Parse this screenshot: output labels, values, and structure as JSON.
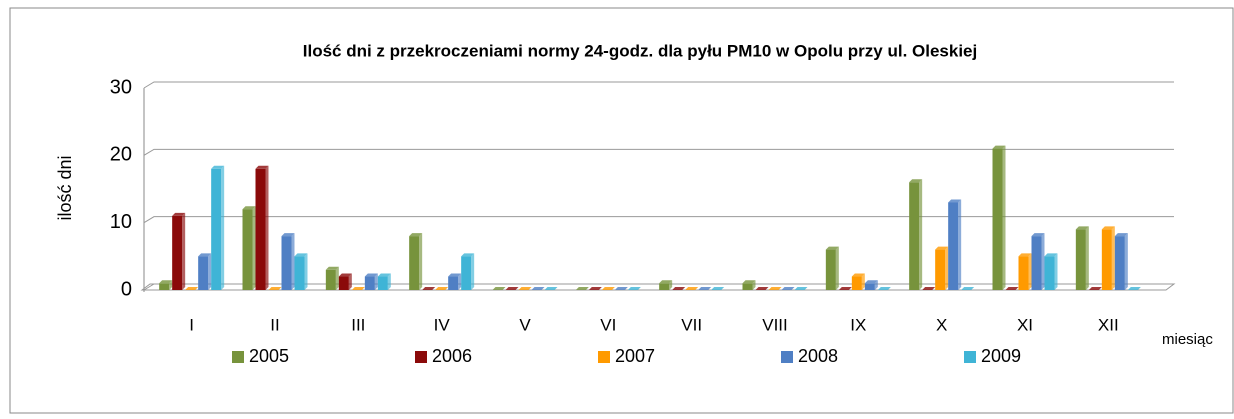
{
  "chart_data": {
    "type": "bar",
    "title": "Ilość dni z przekroczeniami normy 24-godz. dla pyłu PM10 w Opolu przy ul. Oleskiej",
    "y_label": "ilość dni",
    "x_label": "miesiąc",
    "categories": [
      "I",
      "II",
      "III",
      "IV",
      "V",
      "VI",
      "VII",
      "VIII",
      "IX",
      "X",
      "XI",
      "XII"
    ],
    "series": [
      {
        "name": "2005",
        "color": "#77933c",
        "values": [
          1,
          12,
          3,
          8,
          0,
          0,
          1,
          1,
          6,
          16,
          21,
          9
        ]
      },
      {
        "name": "2006",
        "color": "#8b0a0a",
        "values": [
          11,
          18,
          2,
          0,
          0,
          0,
          0,
          0,
          0,
          0,
          0,
          0
        ]
      },
      {
        "name": "2007",
        "color": "#ff9a00",
        "values": [
          0,
          0,
          0,
          0,
          0,
          0,
          0,
          0,
          2,
          6,
          5,
          9
        ]
      },
      {
        "name": "2008",
        "color": "#4f7fc4",
        "values": [
          5,
          8,
          2,
          2,
          0,
          0,
          0,
          0,
          1,
          13,
          8,
          8
        ]
      },
      {
        "name": "2009",
        "color": "#3fb4d6",
        "values": [
          18,
          5,
          2,
          5,
          0,
          0,
          0,
          0,
          0,
          0,
          5,
          0
        ]
      }
    ],
    "ylim": [
      0,
      30
    ],
    "yticks": [
      0,
      10,
      20,
      30
    ],
    "grid": true,
    "legend": "bottom"
  }
}
